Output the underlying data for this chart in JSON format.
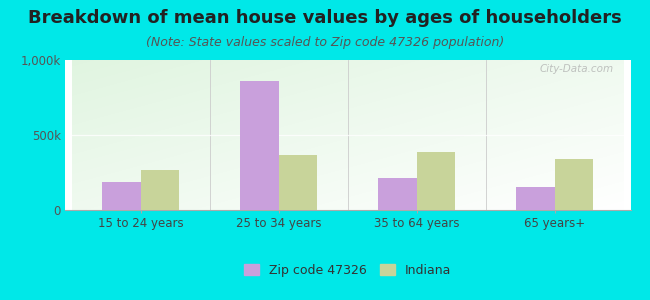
{
  "title": "Breakdown of mean house values by ages of householders",
  "subtitle": "(Note: State values scaled to Zip code 47326 population)",
  "categories": [
    "15 to 24 years",
    "25 to 34 years",
    "35 to 64 years",
    "65 years+"
  ],
  "zip_values": [
    190000,
    860000,
    215000,
    155000
  ],
  "indiana_values": [
    270000,
    370000,
    390000,
    340000
  ],
  "zip_color": "#c9a0dc",
  "indiana_color": "#c8d49a",
  "background_color": "#00e8e8",
  "ylim": [
    0,
    1000000
  ],
  "ytick_labels": [
    "0",
    "500k",
    "1,000k"
  ],
  "zip_label": "Zip code 47326",
  "indiana_label": "Indiana",
  "title_fontsize": 13,
  "subtitle_fontsize": 9,
  "tick_fontsize": 8.5,
  "legend_fontsize": 9,
  "bar_width": 0.28
}
